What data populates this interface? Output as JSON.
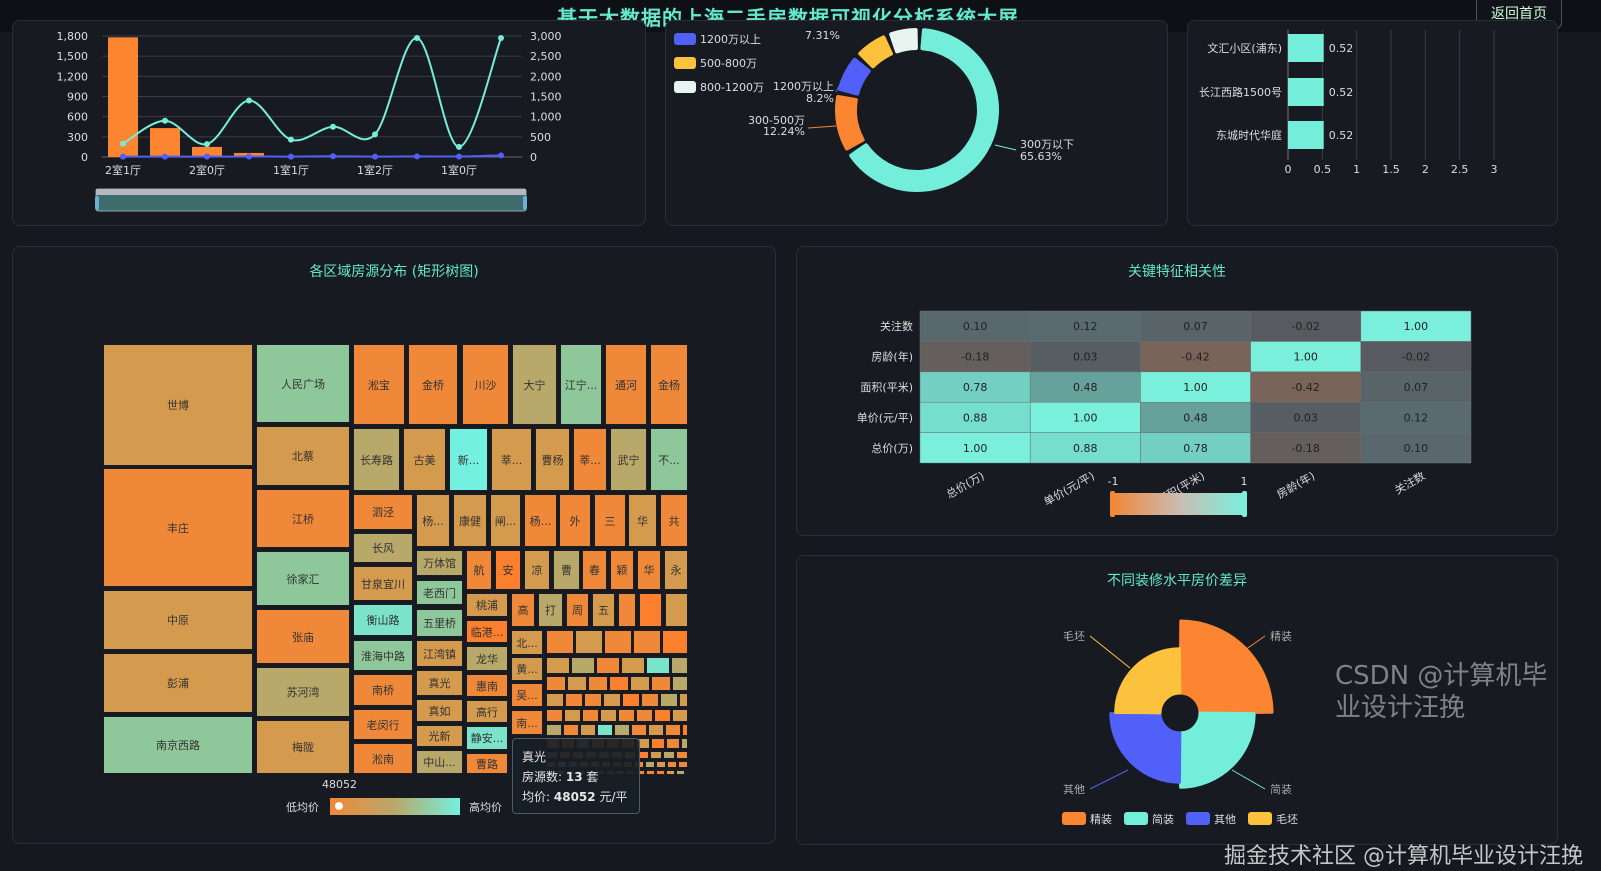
{
  "header": {
    "title": "基于大数据的上海二手房数据可视化分析系统大屏",
    "back_label": "返回首页"
  },
  "colors": {
    "accent": "#63e8cc",
    "orange": "#fb8531",
    "teal": "#73eedb",
    "blue": "#5060f8",
    "yellow": "#fcc23d",
    "white": "#e8f4f0"
  },
  "chart_data": [
    {
      "type": "bar",
      "categories": [
        "2室1厅",
        "",
        "2室0厅",
        "",
        "1室1厅",
        "",
        "1室2厅",
        "",
        "1室0厅",
        ""
      ],
      "ylim": [
        0,
        1800
      ],
      "yticks": [
        "0",
        "300",
        "600",
        "900",
        "1,200",
        "1,500",
        "1,800"
      ],
      "y2lim": [
        0,
        3000
      ],
      "y2ticks": [
        "0",
        "500",
        "1,000",
        "1,500",
        "2,000",
        "2,500",
        "3,000"
      ],
      "series": [
        {
          "type": "bar",
          "axis": "left",
          "values": [
            1780,
            430,
            150,
            60,
            0,
            0,
            0,
            0,
            0,
            0
          ]
        },
        {
          "type": "line",
          "axis": "right",
          "values": [
            330,
            900,
            320,
            1400,
            430,
            750,
            560,
            2950,
            250,
            2950
          ]
        },
        {
          "type": "line",
          "axis": "right",
          "values": [
            10,
            10,
            8,
            12,
            10,
            20,
            8,
            15,
            12,
            40
          ]
        }
      ],
      "grid": true,
      "dataZoom": true
    },
    {
      "type": "pie",
      "donut": true,
      "legend": [
        "1200万以上",
        "500-800万",
        "800-1200万"
      ],
      "slices": [
        {
          "name": "300万以下",
          "value": 65.63,
          "label": "65.63%"
        },
        {
          "name": "300-500万",
          "value": 12.24,
          "label": "12.24%"
        },
        {
          "name": "1200万以上",
          "value": 8.2,
          "label": "8.2%"
        },
        {
          "name": "500-800万",
          "value": 7.31,
          "label": "7.31%"
        },
        {
          "name": "800-1200万",
          "value": 6.62
        }
      ]
    },
    {
      "type": "bar",
      "orientation": "horizontal",
      "categories": [
        "文汇小区(浦东)",
        "长江西路1500号",
        "东城时代华庭"
      ],
      "values": [
        0.52,
        0.52,
        0.52
      ],
      "labels": [
        "0.52",
        "0.52",
        "0.52"
      ],
      "xlim": [
        0,
        3
      ],
      "xticks": [
        "0",
        "0.5",
        "1",
        "1.5",
        "2",
        "2.5",
        "3"
      ]
    },
    {
      "type": "heatmap",
      "title": "关键特征相关性",
      "x": [
        "总价(万)",
        "单价(元/平)",
        "面积(平米)",
        "房龄(年)",
        "关注数"
      ],
      "y": [
        "总价(万)",
        "单价(元/平)",
        "面积(平米)",
        "房龄(年)",
        "关注数"
      ],
      "values": [
        [
          1.0,
          0.88,
          0.78,
          -0.18,
          0.1
        ],
        [
          0.88,
          1.0,
          0.48,
          0.03,
          0.12
        ],
        [
          0.78,
          0.48,
          1.0,
          -0.42,
          0.07
        ],
        [
          -0.18,
          0.03,
          -0.42,
          1.0,
          -0.02
        ],
        [
          0.1,
          0.12,
          0.07,
          -0.02,
          1.0
        ]
      ],
      "labels": [
        [
          "1.00",
          "0.88",
          "0.78",
          "-0.18",
          "0.10"
        ],
        [
          "0.88",
          "1.00",
          "0.48",
          "0.03",
          "0.12"
        ],
        [
          "0.78",
          "0.48",
          "1.00",
          "-0.42",
          "0.07"
        ],
        [
          "-0.18",
          "0.03",
          "-0.42",
          "1.00",
          "-0.02"
        ],
        [
          "0.10",
          "0.12",
          "0.07",
          "-0.02",
          "1.00"
        ]
      ],
      "visualMap": {
        "min": "-1",
        "max": "1"
      }
    },
    {
      "type": "pie",
      "rose": true,
      "title": "不同装修水平房价差异",
      "slices": [
        {
          "name": "精装",
          "value": 93
        },
        {
          "name": "简装",
          "value": 75
        },
        {
          "name": "其他",
          "value": 70
        },
        {
          "name": "毛坯",
          "value": 65
        }
      ]
    }
  ],
  "treemap": {
    "title": "各区域房源分布 (矩形树图)",
    "visual_value": "48052",
    "low_label": "低均价",
    "high_label": "高均价",
    "palette": [
      "#f0883a",
      "#d49a4e",
      "#b8a86a",
      "#8ec79a",
      "#7be3c9",
      "#74f0e0",
      "#fb7f2c"
    ],
    "cells": [
      {
        "n": "世博",
        "c": 1
      },
      {
        "n": "丰庄",
        "c": 0
      },
      {
        "n": "中原",
        "c": 1
      },
      {
        "n": "彭浦",
        "c": 1
      },
      {
        "n": "南京西路",
        "c": 3
      },
      {
        "n": "人民广场",
        "c": 3
      },
      {
        "n": "北蔡",
        "c": 1
      },
      {
        "n": "江桥",
        "c": 0
      },
      {
        "n": "徐家汇",
        "c": 3
      },
      {
        "n": "张庙",
        "c": 0
      },
      {
        "n": "苏河湾",
        "c": 2
      },
      {
        "n": "梅陇",
        "c": 1
      },
      {
        "n": "淞宝",
        "c": 0
      },
      {
        "n": "金桥",
        "c": 0
      },
      {
        "n": "川沙",
        "c": 0
      },
      {
        "n": "大宁",
        "c": 2
      },
      {
        "n": "江宁...",
        "c": 3
      },
      {
        "n": "通河",
        "c": 0
      },
      {
        "n": "金杨",
        "c": 0
      },
      {
        "n": "长寿路",
        "c": 2
      },
      {
        "n": "古美",
        "c": 1
      },
      {
        "n": "新...",
        "c": 5
      },
      {
        "n": "莘...",
        "c": 1
      },
      {
        "n": "曹杨",
        "c": 1
      },
      {
        "n": "莘...",
        "c": 0
      },
      {
        "n": "武宁",
        "c": 2
      },
      {
        "n": "不...",
        "c": 3
      },
      {
        "n": "泗泾",
        "c": 0
      },
      {
        "n": "长风",
        "c": 2
      },
      {
        "n": "甘泉宜川",
        "c": 1
      },
      {
        "n": "衡山路",
        "c": 4
      },
      {
        "n": "淮海中路",
        "c": 3
      },
      {
        "n": "南桥",
        "c": 0
      },
      {
        "n": "老闵行",
        "c": 0
      },
      {
        "n": "淞南",
        "c": 0
      },
      {
        "n": "杨...",
        "c": 1
      },
      {
        "n": "康健",
        "c": 1
      },
      {
        "n": "闸...",
        "c": 1
      },
      {
        "n": "杨...",
        "c": 0
      },
      {
        "n": "外",
        "c": 0
      },
      {
        "n": "三",
        "c": 0
      },
      {
        "n": "华",
        "c": 1
      },
      {
        "n": "共",
        "c": 0
      },
      {
        "n": "万体馆",
        "c": 2
      },
      {
        "n": "老西门",
        "c": 3
      },
      {
        "n": "五里桥",
        "c": 3
      },
      {
        "n": "江湾镇",
        "c": 1
      },
      {
        "n": "真光",
        "c": 1
      },
      {
        "n": "真如",
        "c": 1
      },
      {
        "n": "光新",
        "c": 1
      },
      {
        "n": "中山...",
        "c": 2
      },
      {
        "n": "航",
        "c": 0
      },
      {
        "n": "安",
        "c": 6
      },
      {
        "n": "凉",
        "c": 1
      },
      {
        "n": "曹",
        "c": 2
      },
      {
        "n": "春",
        "c": 0
      },
      {
        "n": "颖",
        "c": 0
      },
      {
        "n": "华",
        "c": 0
      },
      {
        "n": "永",
        "c": 1
      },
      {
        "n": "桃浦",
        "c": 1
      },
      {
        "n": "临港...",
        "c": 6
      },
      {
        "n": "龙华",
        "c": 2
      },
      {
        "n": "惠南",
        "c": 0
      },
      {
        "n": "高行",
        "c": 1
      },
      {
        "n": "静安...",
        "c": 4
      },
      {
        "n": "曹路",
        "c": 0
      },
      {
        "n": "高",
        "c": 0
      },
      {
        "n": "打",
        "c": 2
      },
      {
        "n": "周",
        "c": 0
      },
      {
        "n": "五",
        "c": 1
      },
      {
        "n": "",
        "c": 0
      },
      {
        "n": "",
        "c": 6
      },
      {
        "n": "",
        "c": 1
      },
      {
        "n": "北...",
        "c": 1
      },
      {
        "n": "黄...",
        "c": 1
      },
      {
        "n": "吴...",
        "c": 0
      },
      {
        "n": "南...",
        "c": 0
      }
    ],
    "tooltip": {
      "name": "真光",
      "count_label": "房源数:",
      "count": "13",
      "count_unit": "套",
      "price_label": "均价:",
      "price": "48052",
      "price_unit": "元/平"
    }
  },
  "watermarks": [
    "掘金技术社区 @计算机毕业设计汪挽",
    "CSDN @计算机毕业设计汪挽"
  ]
}
